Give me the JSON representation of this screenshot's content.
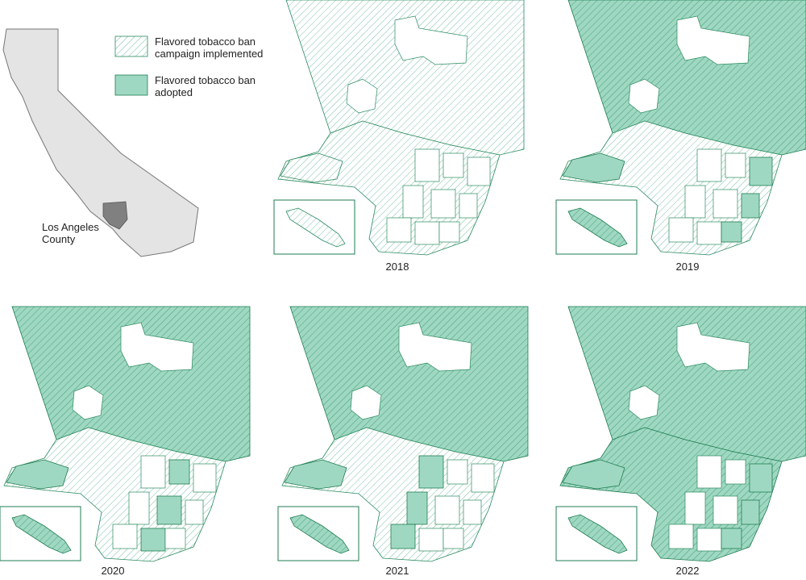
{
  "legend": [
    {
      "label": "Flavored tobacco ban campaign implemented"
    },
    {
      "label": "Flavored tobacco ban adopted"
    }
  ],
  "inset_label": "Los Angeles County",
  "panels": [
    {
      "year": "2018"
    },
    {
      "year": "2019"
    },
    {
      "year": "2020"
    },
    {
      "year": "2021"
    },
    {
      "year": "2022"
    }
  ]
}
